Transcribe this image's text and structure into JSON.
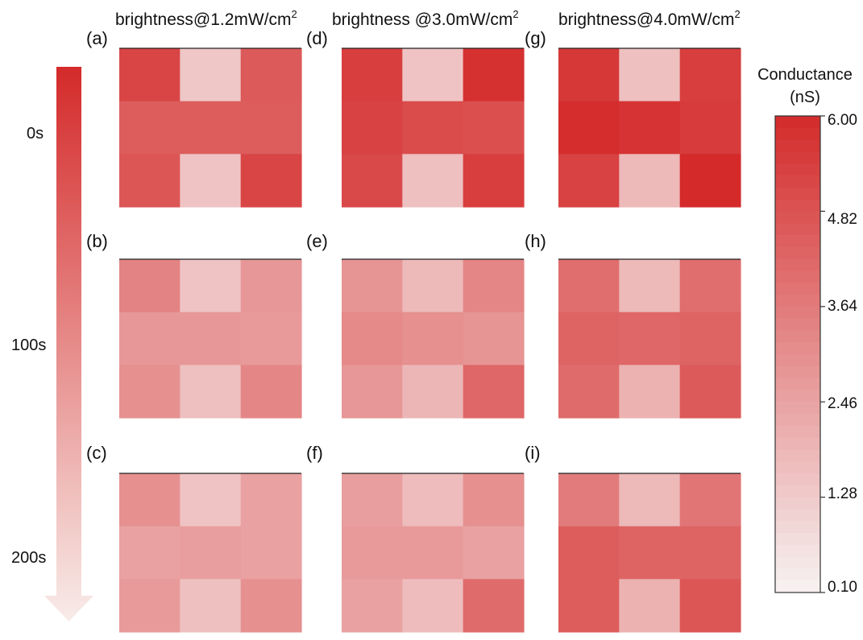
{
  "chart_data": {
    "type": "heatmap",
    "column_titles": [
      {
        "text": "brightness@1.2mW/cm",
        "sup": "2"
      },
      {
        "text": "brightness @3.0mW/cm",
        "sup": "2"
      },
      {
        "text": "brightness@4.0mW/cm",
        "sup": "2"
      }
    ],
    "time_labels": [
      "0s",
      "100s",
      "200s"
    ],
    "colorbar": {
      "title_line1": "Conductance",
      "title_line2": "(nS)",
      "range": [
        0.1,
        6.0
      ],
      "ticks": [
        "6.00",
        "4.82",
        "3.64",
        "2.46",
        "1.28",
        "0.10"
      ],
      "low_color": "#f7f3f3",
      "high_color": "#d42a2a"
    },
    "panels": [
      {
        "label": "(a)",
        "cells": [
          [
            5.2,
            1.4,
            4.6
          ],
          [
            4.5,
            4.5,
            4.5
          ],
          [
            4.7,
            1.5,
            5.2
          ]
        ]
      },
      {
        "label": "(b)",
        "cells": [
          [
            3.4,
            1.5,
            2.8
          ],
          [
            2.8,
            2.8,
            2.7
          ],
          [
            3.0,
            1.6,
            3.3
          ]
        ]
      },
      {
        "label": "(c)",
        "cells": [
          [
            3.0,
            1.5,
            2.5
          ],
          [
            2.5,
            2.6,
            2.5
          ],
          [
            2.7,
            1.6,
            3.0
          ]
        ]
      },
      {
        "label": "(d)",
        "cells": [
          [
            5.4,
            1.5,
            5.8
          ],
          [
            5.3,
            5.0,
            4.9
          ],
          [
            5.1,
            1.6,
            5.4
          ]
        ]
      },
      {
        "label": "(e)",
        "cells": [
          [
            2.9,
            1.8,
            3.3
          ],
          [
            3.2,
            3.0,
            2.9
          ],
          [
            2.8,
            1.9,
            4.2
          ]
        ]
      },
      {
        "label": "(f)",
        "cells": [
          [
            2.6,
            1.7,
            3.0
          ],
          [
            2.7,
            2.7,
            2.5
          ],
          [
            2.5,
            1.7,
            4.1
          ]
        ]
      },
      {
        "label": "(g)",
        "cells": [
          [
            5.6,
            1.6,
            5.4
          ],
          [
            5.9,
            5.7,
            5.5
          ],
          [
            5.3,
            1.8,
            6.0
          ]
        ]
      },
      {
        "label": "(h)",
        "cells": [
          [
            4.0,
            1.8,
            4.0
          ],
          [
            4.3,
            4.2,
            4.3
          ],
          [
            4.1,
            2.0,
            4.6
          ]
        ]
      },
      {
        "label": "(i)",
        "cells": [
          [
            3.6,
            1.8,
            3.8
          ],
          [
            4.5,
            4.3,
            4.3
          ],
          [
            4.5,
            2.0,
            4.7
          ]
        ]
      }
    ]
  }
}
